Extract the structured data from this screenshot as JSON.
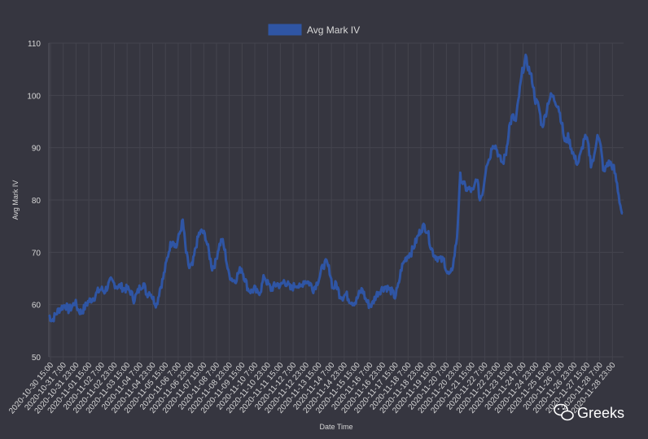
{
  "watermark": {
    "text": "Greeks",
    "icon": "wechat-icon"
  },
  "colors": {
    "background": "#363640",
    "line": "#2f55a4",
    "grid": "#44444e"
  },
  "chart_data": {
    "type": "line",
    "title": "",
    "xlabel": "Date Time",
    "ylabel": "Avg Mark IV",
    "ylim": [
      50,
      110
    ],
    "yticks": [
      50,
      60,
      70,
      80,
      90,
      100,
      110
    ],
    "grid": true,
    "legend": "top-center",
    "series": [
      {
        "name": "Avg Mark IV",
        "points_x_index": [
          0,
          2,
          4,
          6,
          8,
          10,
          12,
          14,
          16,
          18,
          20,
          22,
          24,
          26,
          28,
          30,
          32,
          34,
          36,
          38,
          40,
          42,
          44,
          46,
          48,
          50,
          52,
          54,
          56,
          58,
          60,
          62,
          64,
          66,
          68,
          70,
          72,
          74,
          76,
          78,
          80,
          82,
          84,
          86,
          88,
          90,
          92,
          94,
          96,
          98,
          100,
          102,
          104,
          106,
          108,
          110,
          112,
          114,
          116,
          118,
          120,
          122,
          124,
          126,
          128,
          130,
          132,
          134,
          136,
          138,
          140,
          142,
          144,
          146,
          148,
          150,
          152,
          154,
          156,
          158,
          160,
          162,
          164,
          166,
          168,
          170,
          172,
          174,
          176,
          178,
          180,
          182,
          184,
          186,
          188,
          190,
          192,
          194,
          196,
          198,
          200,
          202,
          204,
          206,
          208,
          210,
          212,
          214,
          216,
          218,
          220,
          222,
          224,
          226,
          228,
          230,
          232,
          234,
          236,
          238,
          240,
          242,
          244,
          246,
          248,
          250,
          252,
          254,
          256,
          258,
          260,
          262,
          264,
          266,
          268,
          270,
          272,
          274,
          276,
          278,
          280,
          282,
          284,
          286,
          288,
          290,
          292,
          294,
          296,
          298,
          300,
          302,
          304,
          306,
          308,
          310,
          312,
          314,
          316,
          318,
          320,
          322,
          324,
          326,
          328,
          330,
          332,
          334,
          336,
          338,
          340,
          342,
          344,
          346,
          348,
          350,
          352
        ],
        "values": [
          58,
          57,
          58,
          59,
          59.5,
          60,
          59,
          59.5,
          60.5,
          59,
          58.5,
          59.5,
          60.5,
          61,
          61.5,
          62.5,
          63,
          62.5,
          63.5,
          64.5,
          64,
          63.5,
          63.5,
          63,
          63,
          62.5,
          61,
          62,
          63.5,
          64,
          62,
          62.5,
          61,
          60,
          63,
          65,
          68,
          71,
          72.5,
          71,
          73.5,
          76,
          70,
          67,
          67.5,
          71,
          73.5,
          74,
          73,
          70,
          67,
          68,
          71,
          72.5,
          70,
          66,
          65,
          64.5,
          66,
          67,
          65,
          63,
          62.5,
          63,
          62,
          63,
          65.5,
          64,
          63,
          63.5,
          64,
          63.5,
          64.5,
          64,
          63,
          63.5,
          64,
          63,
          64.5,
          64.5,
          64,
          63,
          64,
          65.5,
          67.5,
          68,
          66.5,
          63,
          64,
          62,
          61.5,
          62,
          61,
          60.5,
          60.5,
          62,
          63,
          61,
          60,
          60,
          61.5,
          62.5,
          63,
          63.5,
          63,
          62.5,
          61.5,
          63.5,
          67,
          68.5,
          69.5,
          70,
          71.5,
          73,
          74.5,
          75,
          74,
          71,
          69.5,
          69,
          68.5,
          68.5,
          66,
          65.5,
          68.5,
          73,
          84.5,
          83,
          82,
          82,
          81.5,
          84.5,
          80,
          82,
          87,
          88,
          91,
          90,
          88,
          87,
          89,
          94,
          96,
          95,
          100,
          104.5,
          107,
          105,
          103,
          99,
          98,
          94,
          96,
          99,
          100,
          99,
          98,
          95,
          91,
          92,
          90,
          88,
          87,
          89,
          92,
          91,
          87,
          88,
          93,
          90,
          85,
          87,
          87,
          86,
          83,
          79,
          76,
          77,
          78.5,
          81,
          80,
          78,
          77.5,
          78.5,
          79
        ]
      }
    ],
    "x_tick_labels": [
      "2020-10-30 15:00",
      "2020-10-31 7:00",
      "2020-10-31 23:00",
      "2020-11-01 15:00",
      "2020-11-02 7:00",
      "2020-11-02 23:00",
      "2020-11-03 15:00",
      "2020-11-04 7:00",
      "2020-11-04 23:00",
      "2020-11-05 15:00",
      "2020-11-06 7:00",
      "2020-11-06 23:00",
      "2020-11-07 15:00",
      "2020-11-08 7:00",
      "2020-11-08 23:00",
      "2020-11-09 15:00",
      "2020-11-10 7:00",
      "2020-11-10 23:00",
      "2020-11-11 15:00",
      "2020-11-12 7:00",
      "2020-11-12 23:00",
      "2020-11-13 15:00",
      "2020-11-14 7:00",
      "2020-11-14 23:00",
      "2020-11-15 15:00",
      "2020-11-16 7:00",
      "2020-11-16 23:00",
      "2020-11-17 15:00",
      "2020-11-18 7:00",
      "2020-11-18 23:00",
      "2020-11-19 15:00",
      "2020-11-20 7:00",
      "2020-11-20 23:00",
      "2020-11-21 15:00",
      "2020-11-22 7:00",
      "2020-11-22 23:00",
      "2020-11-23 15:00",
      "2020-11-24 7:00",
      "2020-11-24 23:00",
      "2020-11-25 15:00",
      "2020-11-26 7:00",
      "2020-11-26 23:00",
      "2020-11-27 15:00",
      "2020-11-28 7:00",
      "2020-11-28 23:00"
    ]
  }
}
